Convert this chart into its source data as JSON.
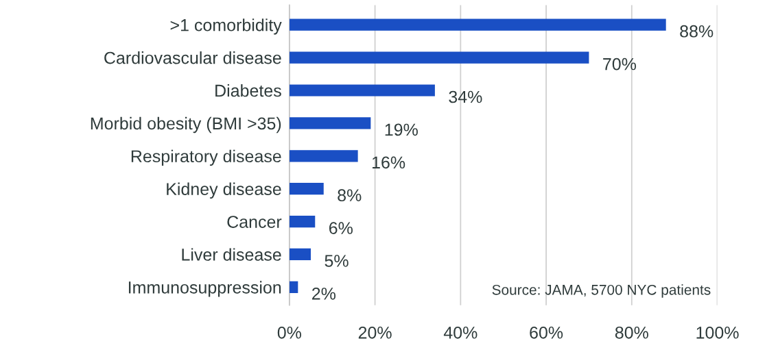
{
  "chart_data": {
    "type": "bar",
    "orientation": "horizontal",
    "categories": [
      ">1 comorbidity",
      "Cardiovascular disease",
      "Diabetes",
      "Morbid obesity (BMI >35)",
      "Respiratory disease",
      "Kidney disease",
      "Cancer",
      "Liver disease",
      "Immunosuppression"
    ],
    "values": [
      88,
      70,
      34,
      19,
      16,
      8,
      6,
      5,
      2
    ],
    "value_labels": [
      "88%",
      "70%",
      "34%",
      "19%",
      "16%",
      "8%",
      "6%",
      "5%",
      "2%"
    ],
    "color": "#1a4fc4",
    "xlim": [
      0,
      100
    ],
    "xticks": [
      {
        "value": 0,
        "label": "0%"
      },
      {
        "value": 20,
        "label": "20%"
      },
      {
        "value": 40,
        "label": "40%"
      },
      {
        "value": 60,
        "label": "60%"
      },
      {
        "value": 80,
        "label": "80%"
      },
      {
        "value": 100,
        "label": "100%"
      }
    ],
    "grid": "x",
    "annotations": [
      "Source: JAMA, 5700 NYC patients"
    ]
  }
}
